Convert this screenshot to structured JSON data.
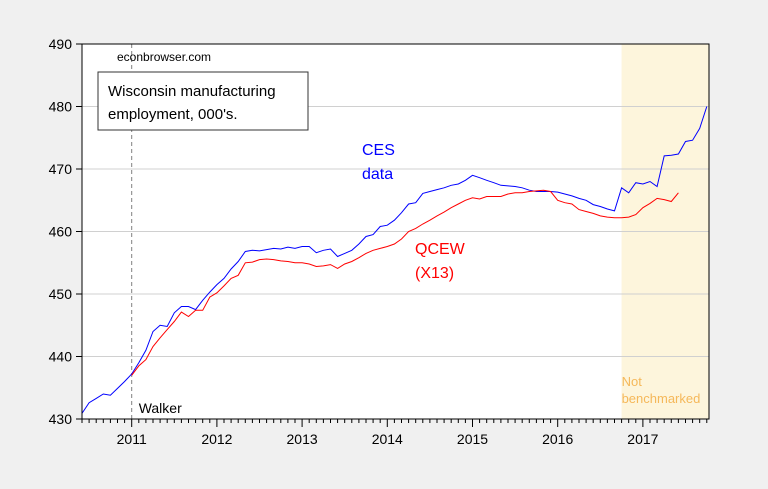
{
  "chart_data": {
    "type": "line",
    "title": "Wisconsin manufacturing employment, 000's.",
    "source_note": "econbrowser.com",
    "xlabel": "",
    "ylabel": "",
    "x_type": "month",
    "xlim": [
      "2010-06",
      "2017-10"
    ],
    "ylim": [
      430,
      490
    ],
    "yticks": [
      430,
      440,
      450,
      460,
      470,
      480,
      490
    ],
    "xticks": [
      "2011",
      "2012",
      "2013",
      "2014",
      "2015",
      "2016",
      "2017"
    ],
    "grid": "horizontal",
    "legend": "none",
    "series": [
      {
        "name": "CES data",
        "label_lines": [
          "CES",
          "data"
        ],
        "color": "#0000ff",
        "start": "2010-06",
        "values": [
          430.9,
          432.6,
          433.3,
          434.0,
          433.8,
          434.9,
          436.0,
          437.2,
          439.0,
          441.0,
          444.0,
          445.0,
          444.8,
          447.0,
          448.0,
          448.0,
          447.5,
          449.0,
          450.3,
          451.5,
          452.5,
          454.0,
          455.2,
          456.8,
          457.0,
          456.9,
          457.1,
          457.3,
          457.2,
          457.5,
          457.3,
          457.6,
          457.6,
          456.6,
          457.0,
          457.2,
          456.0,
          456.5,
          457.0,
          458.0,
          459.2,
          459.5,
          460.8,
          461.0,
          461.8,
          463.0,
          464.4,
          464.6,
          466.1,
          466.4,
          466.7,
          467.0,
          467.4,
          467.6,
          468.2,
          469.0,
          468.6,
          468.2,
          467.8,
          467.4,
          467.3,
          467.2,
          467.0,
          466.6,
          466.4,
          466.4,
          466.4,
          466.3,
          466.0,
          465.7,
          465.3,
          465.0,
          464.3,
          464.0,
          463.6,
          463.3,
          467.0,
          466.2,
          467.8,
          467.6,
          468.0,
          467.2,
          472.1,
          472.2,
          472.4,
          474.4,
          474.6,
          476.5,
          480.0
        ]
      },
      {
        "name": "QCEW (X13)",
        "label_lines": [
          "QCEW",
          "(X13)"
        ],
        "color": "#ff0000",
        "start": "2011-01",
        "values": [
          437.0,
          438.5,
          439.5,
          441.6,
          443.0,
          444.3,
          445.6,
          447.1,
          446.4,
          447.4,
          447.4,
          449.5,
          450.2,
          451.3,
          452.5,
          453.0,
          455.0,
          455.1,
          455.5,
          455.6,
          455.5,
          455.3,
          455.2,
          455.0,
          455.0,
          454.8,
          454.4,
          454.5,
          454.7,
          454.1,
          454.8,
          455.2,
          455.8,
          456.5,
          457.0,
          457.3,
          457.6,
          458.0,
          458.8,
          460.0,
          460.5,
          461.2,
          461.8,
          462.5,
          463.1,
          463.8,
          464.4,
          465.0,
          465.4,
          465.2,
          465.6,
          465.6,
          465.6,
          466.0,
          466.2,
          466.2,
          466.4,
          466.5,
          466.6,
          466.4,
          465.0,
          464.6,
          464.4,
          463.5,
          463.2,
          462.9,
          462.5,
          462.3,
          462.2,
          462.2,
          462.3,
          462.7,
          463.8,
          464.5,
          465.3,
          465.1,
          464.8,
          466.2
        ]
      }
    ],
    "annotations": {
      "event_line": {
        "date": "2011-01",
        "label": "Walker",
        "color": "#808080"
      },
      "shaded_region": {
        "from": "2016-10",
        "to": "2017-10",
        "label_lines": [
          "Not",
          "benchmarked"
        ],
        "color": "#fdf5dc",
        "label_color": "#f5b85a"
      }
    }
  }
}
